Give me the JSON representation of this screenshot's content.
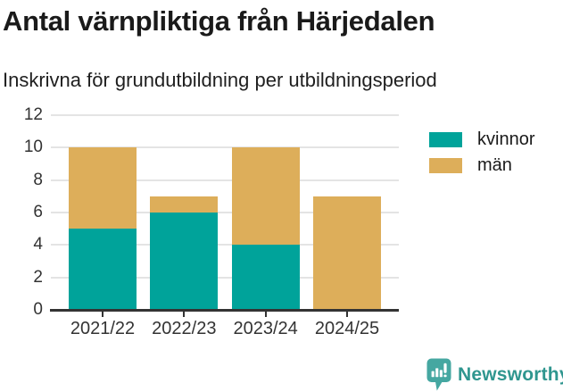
{
  "header": {
    "title": "Antal värnpliktiga från Härjedalen",
    "subtitle": "Inskrivna för grundutbildning per utbildningsperiod"
  },
  "chart_data": {
    "type": "bar",
    "stacked": true,
    "title": "Antal värnpliktiga från Härjedalen",
    "subtitle": "Inskrivna för grundutbildning per utbildningsperiod",
    "categories": [
      "2021/22",
      "2022/23",
      "2023/24",
      "2024/25"
    ],
    "series": [
      {
        "name": "kvinnor",
        "color": "#00A39A",
        "values": [
          5,
          6,
          4,
          0
        ]
      },
      {
        "name": "män",
        "color": "#DDAE5A",
        "values": [
          5,
          1,
          6,
          7
        ]
      }
    ],
    "stack_totals": [
      10,
      7,
      10,
      7
    ],
    "xlabel": "",
    "ylabel": "",
    "ylim": [
      0,
      12
    ],
    "yticks": [
      0,
      2,
      4,
      6,
      8,
      10,
      12
    ],
    "grid": true,
    "legend_position": "right",
    "grid_color": "#e4e4e4",
    "axis_color": "#333333"
  },
  "footer": {
    "brand": "Newsworthy",
    "logo_icon": "speech-bubble-bar-chart-icon",
    "brand_color": "#2F968F",
    "logo_color": "#45A7A1"
  }
}
